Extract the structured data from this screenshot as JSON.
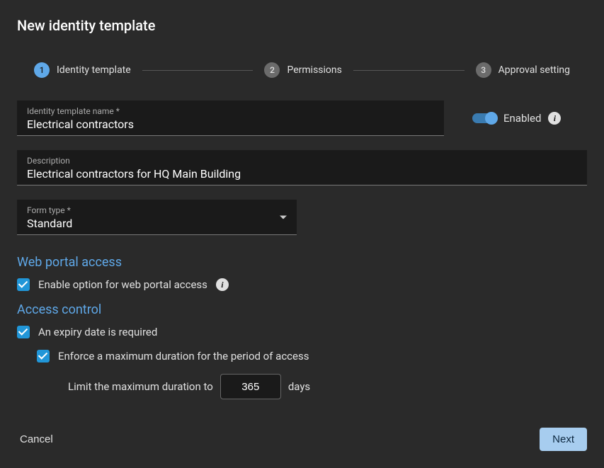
{
  "title": "New identity template",
  "stepper": {
    "steps": [
      {
        "num": "1",
        "label": "Identity template",
        "active": true
      },
      {
        "num": "2",
        "label": "Permissions",
        "active": false
      },
      {
        "num": "3",
        "label": "Approval setting",
        "active": false
      }
    ]
  },
  "fields": {
    "name": {
      "label": "Identity template name *",
      "value": "Electrical contractors"
    },
    "description": {
      "label": "Description",
      "value": "Electrical contractors for HQ Main Building"
    },
    "form_type": {
      "label": "Form type *",
      "value": "Standard"
    }
  },
  "enabled": {
    "label": "Enabled",
    "state": true
  },
  "sections": {
    "web_portal": {
      "heading": "Web portal access",
      "option": "Enable option for web portal access"
    },
    "access_control": {
      "heading": "Access control",
      "expiry": "An expiry date is required",
      "enforce": "Enforce a maximum duration for the period of access",
      "limit_prefix": "Limit the maximum duration to",
      "limit_value": "365",
      "limit_suffix": "days"
    }
  },
  "footer": {
    "cancel": "Cancel",
    "next": "Next"
  },
  "colors": {
    "accent": "#5fa8e8",
    "background": "#2a2a2a",
    "field_bg": "#1a1a1a",
    "checkbox": "#2196d8",
    "next_btn": "#a7cdef"
  }
}
